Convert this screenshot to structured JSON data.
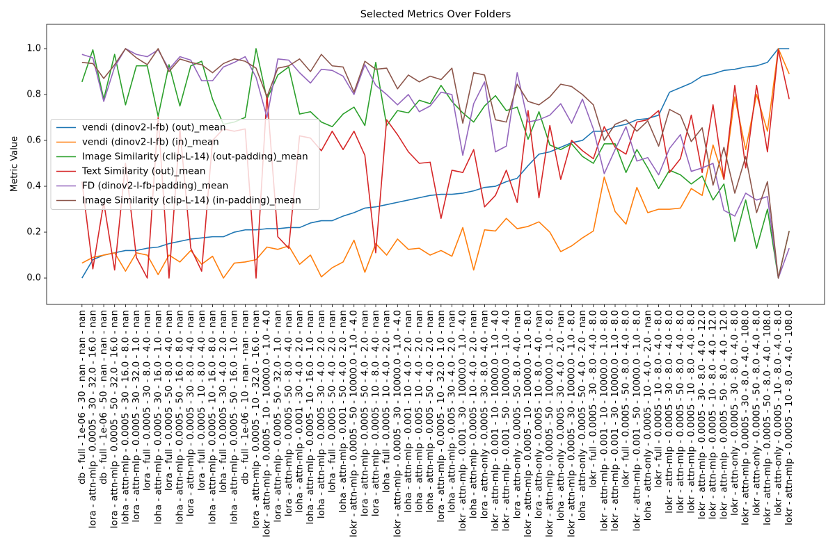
{
  "chart_data": {
    "type": "line",
    "title": "Selected Metrics Over Folders",
    "y_label": "Metric Value",
    "categories": [
      "db - full - 1e-06 - 30 - nan - nan - nan",
      "lora - attn-mlp - 0.0005 - 30 - 32.0 - 16.0 - nan",
      "db - full - 1e-06 - 50 - nan - nan - nan",
      "lora - attn-mlp - 0.0005 - 50 - 32.0 - 16.0 - nan",
      "loha - attn-mlp - 0.0005 - 30 - 16.0 - 8.0 - nan",
      "lora - attn-mlp - 0.0005 - 30 - 32.0 - 1.0 - nan",
      "lora - full - 0.0005 - 30 - 8.0 - 4.0 - nan",
      "loha - attn-mlp - 0.0005 - 30 - 16.0 - 1.0 - nan",
      "lora - full - 0.0005 - 50 - 8.0 - 4.0 - nan",
      "loha - attn-mlp - 0.0005 - 50 - 16.0 - 8.0 - nan",
      "lora - attn-mlp - 0.0005 - 30 - 8.0 - 4.0 - nan",
      "lora - full - 0.0005 - 10 - 8.0 - 4.0 - nan",
      "loha - attn-mlp - 0.0005 - 10 - 16.0 - 8.0 - nan",
      "loha - full - 0.0005 - 30 - 4.0 - 2.0 - nan",
      "loha - attn-mlp - 0.0005 - 50 - 16.0 - 1.0 - nan",
      "db - full - 1e-06 - 10 - nan - nan - nan",
      "lora - attn-mlp - 0.0005 - 10 - 32.0 - 16.0 - nan",
      "lokr - attn-mlp - 0.0005 - 10 - 10000.0 - 1.0 - 4.0",
      "lora - attn-mlp - 0.0005 - 50 - 32.0 - 1.0 - nan",
      "lora - attn-mlp - 0.0005 - 50 - 8.0 - 4.0 - nan",
      "loha - attn-mlp - 0.001 - 30 - 4.0 - 2.0 - nan",
      "loha - attn-mlp - 0.0005 - 10 - 16.0 - 1.0 - nan",
      "loha - attn-mlp - 0.0005 - 30 - 4.0 - 2.0 - nan",
      "loha - full - 0.0005 - 50 - 4.0 - 2.0 - nan",
      "loha - attn-mlp - 0.001 - 50 - 4.0 - 2.0 - nan",
      "lokr - attn-mlp - 0.0005 - 50 - 10000.0 - 1.0 - 4.0",
      "lora - attn-mlp - 0.0005 - 50 - 4.0 - 2.0 - nan",
      "lora - attn-mlp - 0.0005 - 10 - 8.0 - 4.0 - nan",
      "loha - full - 0.0005 - 10 - 4.0 - 2.0 - nan",
      "lokr - attn-mlp - 0.0005 - 30 - 10000.0 - 1.0 - 4.0",
      "loha - attn-mlp - 0.001 - 10 - 4.0 - 2.0 - nan",
      "loha - attn-mlp - 0.005 - 10 - 4.0 - 2.0 - nan",
      "loha - attn-mlp - 0.005 - 50 - 4.0 - 2.0 - nan",
      "lora - attn-mlp - 0.0005 - 10 - 32.0 - 1.0 - nan",
      "loha - attn-mlp - 0.005 - 30 - 4.0 - 2.0 - nan",
      "lokr - attn-mlp - 0.001 - 30 - 10000.0 - 1.0 - 4.0",
      "loha - attn-mlp - 0.0005 - 10 - 4.0 - 2.0 - nan",
      "lora - attn-only - 0.0005 - 30 - 8.0 - 4.0 - nan",
      "lokr - attn-mlp - 0.001 - 10 - 10000.0 - 1.0 - 4.0",
      "lokr - attn-mlp - 0.001 - 50 - 10000.0 - 1.0 - 4.0",
      "lora - attn-only - 0.0005 - 50 - 8.0 - 4.0 - nan",
      "lokr - attn-mlp - 0.0005 - 10 - 10000.0 - 1.0 - 8.0",
      "lora - attn-only - 0.0005 - 10 - 8.0 - 4.0 - nan",
      "lokr - attn-mlp - 0.0005 - 50 - 10000.0 - 1.0 - 8.0",
      "loha - attn-only - 0.0005 - 30 - 4.0 - 2.0 - nan",
      "lokr - attn-mlp - 0.0005 - 30 - 10000.0 - 1.0 - 8.0",
      "loha - attn-only - 0.0005 - 50 - 4.0 - 2.0 - nan",
      "lokr - full - 0.0005 - 30 - 8.0 - 4.0 - 8.0",
      "lokr - attn-mlp - 0.001 - 10 - 10000.0 - 1.0 - 8.0",
      "lokr - attn-mlp - 0.001 - 30 - 10000.0 - 1.0 - 8.0",
      "lokr - full - 0.0005 - 50 - 8.0 - 4.0 - 8.0",
      "lokr - attn-mlp - 0.001 - 50 - 10000.0 - 1.0 - 8.0",
      "loha - attn-only - 0.0005 - 10 - 4.0 - 2.0 - nan",
      "lokr - full - 0.0005 - 10 - 8.0 - 4.0 - 8.0",
      "lokr - attn-mlp - 0.0005 - 30 - 8.0 - 4.0 - 8.0",
      "lokr - attn-mlp - 0.0005 - 50 - 8.0 - 4.0 - 8.0",
      "lokr - attn-mlp - 0.0005 - 10 - 8.0 - 4.0 - 8.0",
      "lokr - attn-mlp - 0.0005 - 30 - 8.0 - 4.0 - 12.0",
      "lokr - attn-mlp - 0.0005 - 10 - 8.0 - 4.0 - 12.0",
      "lokr - attn-mlp - 0.0005 - 50 - 8.0 - 4.0 - 12.0",
      "lokr - attn-only - 0.0005 - 30 - 8.0 - 4.0 - 8.0",
      "lokr - attn-mlp - 0.0005 - 30 - 8.0 - 4.0 - 108.0",
      "lokr - attn-only - 0.0005 - 50 - 8.0 - 4.0 - 8.0",
      "lokr - attn-mlp - 0.0005 - 50 - 8.0 - 4.0 - 108.0",
      "lokr - attn-only - 0.0005 - 10 - 8.0 - 4.0 - 8.0",
      "lokr - attn-mlp - 0.0005 - 10 - 8.0 - 4.0 - 108.0"
    ],
    "series": [
      {
        "name": "vendi (dinov2-l-fb) (out)_mean",
        "color": "#1f77b4",
        "values": [
          0.0,
          0.08,
          0.1,
          0.11,
          0.12,
          0.12,
          0.13,
          0.135,
          0.15,
          0.16,
          0.17,
          0.175,
          0.18,
          0.18,
          0.2,
          0.21,
          0.21,
          0.215,
          0.215,
          0.22,
          0.22,
          0.24,
          0.25,
          0.25,
          0.27,
          0.285,
          0.305,
          0.31,
          0.32,
          0.33,
          0.34,
          0.35,
          0.36,
          0.365,
          0.365,
          0.37,
          0.38,
          0.395,
          0.4,
          0.42,
          0.435,
          0.49,
          0.54,
          0.55,
          0.57,
          0.59,
          0.6,
          0.64,
          0.64,
          0.66,
          0.67,
          0.69,
          0.695,
          0.71,
          0.81,
          0.83,
          0.85,
          0.88,
          0.89,
          0.905,
          0.91,
          0.92,
          0.925,
          0.94,
          1.0,
          1.0
        ]
      },
      {
        "name": "vendi (dinov2-l-fb) (in)_mean",
        "color": "#ff7f0e",
        "values": [
          0.065,
          0.09,
          0.1,
          0.11,
          0.03,
          0.11,
          0.1,
          0.015,
          0.1,
          0.07,
          0.12,
          0.06,
          0.095,
          0.0,
          0.065,
          0.07,
          0.08,
          0.135,
          0.125,
          0.14,
          0.06,
          0.1,
          0.005,
          0.045,
          0.07,
          0.165,
          0.025,
          0.15,
          0.1,
          0.17,
          0.125,
          0.13,
          0.1,
          0.12,
          0.095,
          0.22,
          0.035,
          0.21,
          0.205,
          0.26,
          0.215,
          0.225,
          0.245,
          0.2,
          0.115,
          0.14,
          0.175,
          0.205,
          0.44,
          0.29,
          0.235,
          0.395,
          0.285,
          0.3,
          0.3,
          0.305,
          0.39,
          0.36,
          0.58,
          0.43,
          0.79,
          0.56,
          0.8,
          0.64,
          1.0,
          0.89
        ]
      },
      {
        "name": "Image Similarity (clip-L-14) (out-padding)_mean",
        "color": "#2ca02c",
        "values": [
          0.855,
          0.995,
          0.78,
          0.975,
          0.755,
          0.925,
          0.925,
          0.705,
          0.93,
          0.75,
          0.925,
          0.945,
          0.78,
          0.67,
          0.68,
          0.7,
          1.0,
          0.78,
          0.885,
          0.92,
          0.715,
          0.725,
          0.68,
          0.66,
          0.715,
          0.745,
          0.665,
          0.94,
          0.665,
          0.73,
          0.72,
          0.775,
          0.76,
          0.84,
          0.77,
          0.72,
          0.68,
          0.75,
          0.795,
          0.73,
          0.745,
          0.605,
          0.725,
          0.58,
          0.56,
          0.585,
          0.53,
          0.5,
          0.585,
          0.585,
          0.46,
          0.56,
          0.48,
          0.39,
          0.47,
          0.45,
          0.41,
          0.445,
          0.34,
          0.41,
          0.16,
          0.34,
          0.13,
          0.3,
          0.0,
          0.205
        ]
      },
      {
        "name": "Text Similarity (out)_mean",
        "color": "#d62728",
        "values": [
          0.42,
          0.04,
          0.33,
          0.035,
          0.5,
          0.09,
          0.0,
          0.7,
          0.0,
          0.65,
          0.13,
          0.03,
          0.6,
          0.65,
          0.64,
          0.65,
          0.0,
          0.8,
          0.18,
          0.13,
          0.62,
          0.61,
          0.555,
          0.64,
          0.56,
          0.64,
          0.535,
          0.11,
          0.69,
          0.625,
          0.55,
          0.5,
          0.505,
          0.26,
          0.47,
          0.46,
          0.56,
          0.31,
          0.36,
          0.47,
          0.33,
          0.73,
          0.35,
          0.665,
          0.43,
          0.6,
          0.555,
          0.52,
          0.66,
          0.57,
          0.54,
          0.68,
          0.69,
          0.73,
          0.46,
          0.52,
          0.71,
          0.46,
          0.755,
          0.43,
          0.84,
          0.48,
          0.84,
          0.55,
          0.995,
          0.78
        ]
      },
      {
        "name": "FD (dinov2-l-fb-padding)_mean",
        "color": "#9467bd",
        "values": [
          0.975,
          0.96,
          0.77,
          0.92,
          1.0,
          0.975,
          0.965,
          0.995,
          0.91,
          0.965,
          0.95,
          0.86,
          0.86,
          0.92,
          0.94,
          0.965,
          0.875,
          0.7,
          0.955,
          0.95,
          0.895,
          0.85,
          0.91,
          0.905,
          0.88,
          0.8,
          0.93,
          0.84,
          0.8,
          0.755,
          0.8,
          0.725,
          0.75,
          0.81,
          0.8,
          0.535,
          0.76,
          0.855,
          0.55,
          0.575,
          0.895,
          0.68,
          0.69,
          0.71,
          0.76,
          0.675,
          0.78,
          0.65,
          0.455,
          0.56,
          0.66,
          0.51,
          0.525,
          0.45,
          0.565,
          0.625,
          0.465,
          0.48,
          0.5,
          0.295,
          0.27,
          0.37,
          0.34,
          0.355,
          0.0,
          0.13
        ]
      },
      {
        "name": "Image Similarity (clip-L-14) (in-padding)_mean",
        "color": "#8c564b",
        "values": [
          0.94,
          0.935,
          0.87,
          0.93,
          1.0,
          0.96,
          0.93,
          1.0,
          0.9,
          0.955,
          0.94,
          0.93,
          0.895,
          0.935,
          0.955,
          0.945,
          0.915,
          0.79,
          0.915,
          0.925,
          0.955,
          0.9,
          0.975,
          0.925,
          0.92,
          0.81,
          0.945,
          0.91,
          0.915,
          0.825,
          0.885,
          0.855,
          0.88,
          0.865,
          0.915,
          0.675,
          0.895,
          0.885,
          0.69,
          0.68,
          0.845,
          0.77,
          0.755,
          0.79,
          0.845,
          0.835,
          0.8,
          0.755,
          0.6,
          0.67,
          0.69,
          0.64,
          0.685,
          0.575,
          0.735,
          0.71,
          0.595,
          0.655,
          0.405,
          0.57,
          0.37,
          0.53,
          0.285,
          0.42,
          0.0,
          0.205
        ]
      }
    ],
    "ylim": [
      -0.115,
      1.106
    ],
    "yticks": [
      {
        "value": 0,
        "label": "0.0"
      },
      {
        "value": 0.2,
        "label": "0.2"
      },
      {
        "value": 0.4,
        "label": "0.4"
      },
      {
        "value": 0.6,
        "label": "0.6"
      },
      {
        "value": 0.8,
        "label": "0.8"
      },
      {
        "value": 1.0,
        "label": "1.0"
      }
    ],
    "grid": false,
    "legend": "center left"
  }
}
